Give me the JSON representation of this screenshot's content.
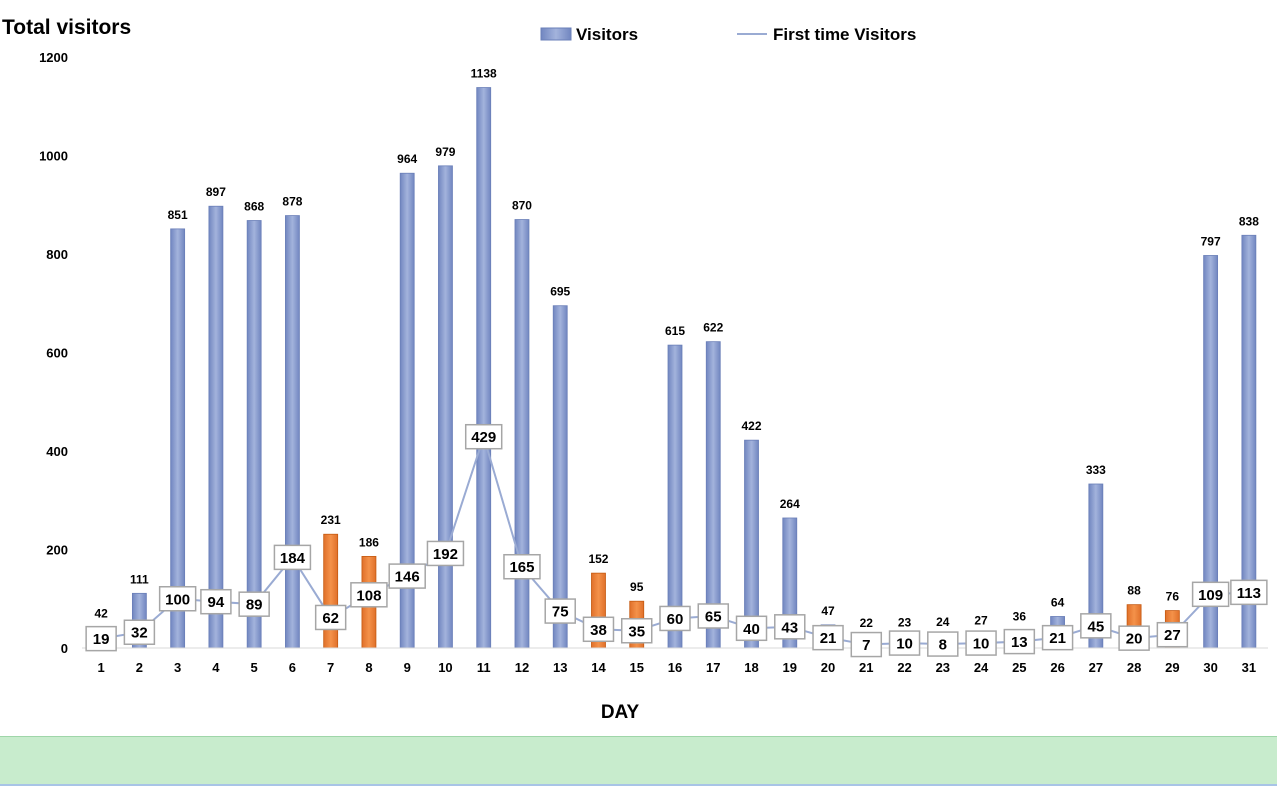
{
  "chart_data": {
    "type": "bar",
    "title": "Total visitors",
    "xlabel": "DAY",
    "ylabel": "",
    "ylim": [
      0,
      1200
    ],
    "yticks": [
      0,
      200,
      400,
      600,
      800,
      1000,
      1200
    ],
    "legend_position": "top-center",
    "grid": false,
    "categories": [
      "1",
      "2",
      "3",
      "4",
      "5",
      "6",
      "7",
      "8",
      "9",
      "10",
      "11",
      "12",
      "13",
      "14",
      "15",
      "16",
      "17",
      "18",
      "19",
      "20",
      "21",
      "22",
      "23",
      "24",
      "25",
      "26",
      "27",
      "28",
      "29",
      "30",
      "31"
    ],
    "series": [
      {
        "name": "Visitors",
        "type": "bar",
        "values": [
          42,
          111,
          851,
          897,
          868,
          878,
          231,
          186,
          964,
          979,
          1138,
          870,
          695,
          152,
          95,
          615,
          622,
          422,
          264,
          47,
          22,
          23,
          24,
          27,
          36,
          64,
          333,
          88,
          76,
          797,
          838
        ]
      },
      {
        "name": "First time Visitors",
        "type": "line",
        "values": [
          19,
          32,
          100,
          94,
          89,
          184,
          62,
          108,
          146,
          192,
          429,
          165,
          75,
          38,
          35,
          60,
          65,
          40,
          43,
          21,
          7,
          10,
          8,
          10,
          13,
          21,
          45,
          20,
          27,
          109,
          113
        ]
      }
    ],
    "highlighted_categories": [
      "7",
      "8",
      "14",
      "15",
      "28",
      "29"
    ]
  },
  "colors": {
    "bar": "#8497c9",
    "bar_highlight": "#ed7d31",
    "line": "#9aabd3",
    "label_border": "#a6a6a6"
  }
}
